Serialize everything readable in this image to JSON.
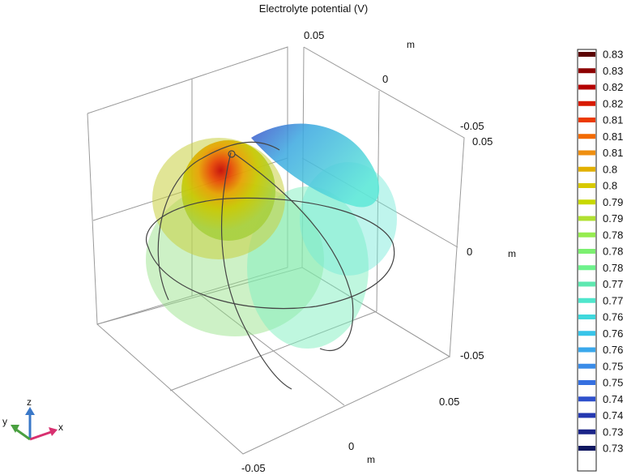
{
  "chart_data": {
    "type": "isosurface",
    "title": "Electrolyte potential (V)",
    "axes": {
      "x": {
        "unit": "m",
        "ticks": [
          "-0.05",
          "0",
          "0.05"
        ]
      },
      "y": {
        "unit": "m",
        "ticks": [
          "-0.05",
          "0",
          "0.05"
        ]
      },
      "z": {
        "unit": "m",
        "ticks": [
          "-0.05",
          "0",
          "0.05"
        ]
      }
    },
    "colorbar": {
      "placement": "right",
      "levels": [
        "0.83",
        "0.83",
        "0.82",
        "0.82",
        "0.81",
        "0.81",
        "0.81",
        "0.8",
        "0.8",
        "0.79",
        "0.79",
        "0.78",
        "0.78",
        "0.78",
        "0.77",
        "0.77",
        "0.76",
        "0.76",
        "0.76",
        "0.75",
        "0.75",
        "0.74",
        "0.74",
        "0.73",
        "0.73"
      ],
      "colors": [
        "#5a0000",
        "#8c0000",
        "#b40000",
        "#d81a00",
        "#ec3a00",
        "#f26a00",
        "#ef8f10",
        "#e2b000",
        "#d8c900",
        "#c8d800",
        "#b0e030",
        "#96ec50",
        "#7cf070",
        "#6ef28c",
        "#5ee8b0",
        "#4fe6cc",
        "#3fd8dc",
        "#38c4e8",
        "#3aa8ec",
        "#3a8ce8",
        "#3670e0",
        "#2e50cc",
        "#2438b0",
        "#1a2488",
        "#101860"
      ]
    },
    "triad": {
      "x": "x",
      "y": "y",
      "z": "z"
    }
  }
}
